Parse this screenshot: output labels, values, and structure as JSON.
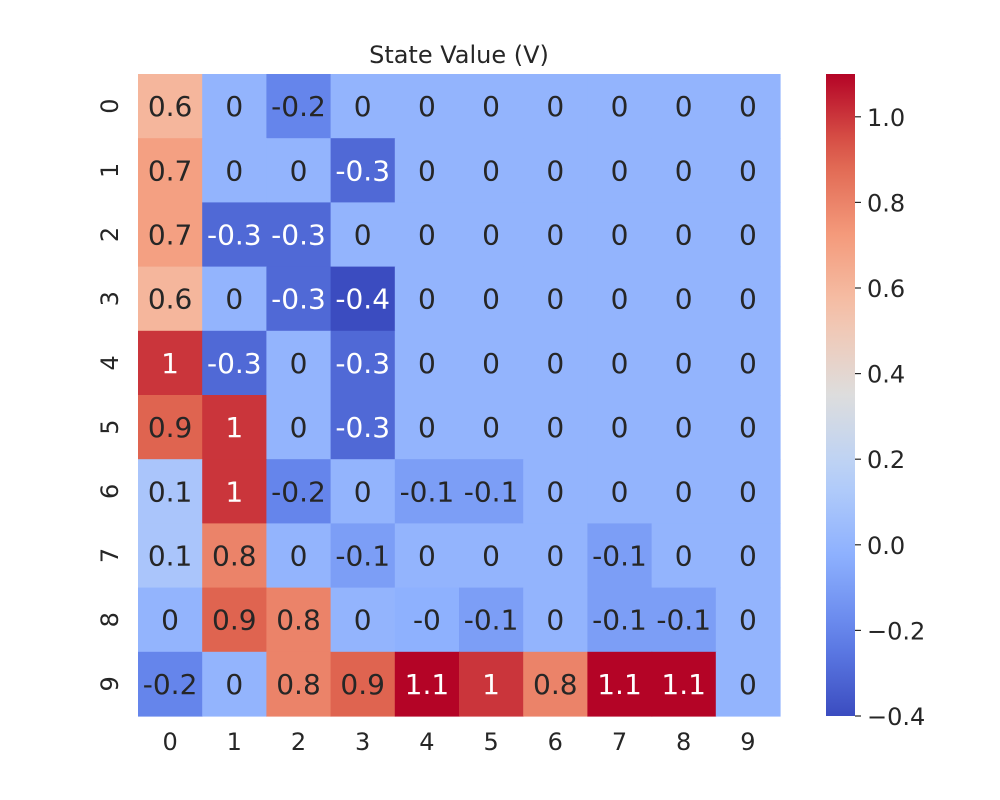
{
  "chart_data": {
    "type": "heatmap",
    "title": "State Value (V)",
    "x_categories": [
      "0",
      "1",
      "2",
      "3",
      "4",
      "5",
      "6",
      "7",
      "8",
      "9"
    ],
    "y_categories": [
      "0",
      "1",
      "2",
      "3",
      "4",
      "5",
      "6",
      "7",
      "8",
      "9"
    ],
    "values": [
      [
        0.6,
        0,
        -0.2,
        0,
        0,
        0,
        0,
        0,
        0,
        0
      ],
      [
        0.7,
        0,
        0,
        -0.3,
        0,
        0,
        0,
        0,
        0,
        0
      ],
      [
        0.7,
        -0.3,
        -0.3,
        0,
        0,
        0,
        0,
        0,
        0,
        0
      ],
      [
        0.6,
        0,
        -0.3,
        -0.4,
        0,
        0,
        0,
        0,
        0,
        0
      ],
      [
        1,
        -0.3,
        0,
        -0.3,
        0,
        0,
        0,
        0,
        0,
        0
      ],
      [
        0.9,
        1,
        0,
        -0.3,
        0,
        0,
        0,
        0,
        0,
        0
      ],
      [
        0.1,
        1,
        -0.2,
        0,
        -0.1,
        -0.1,
        0,
        0,
        0,
        0
      ],
      [
        0.1,
        0.8,
        0,
        -0.1,
        0,
        0,
        0,
        -0.1,
        0,
        0
      ],
      [
        0,
        0.9,
        0.8,
        0,
        -0.02,
        -0.1,
        0,
        -0.1,
        -0.1,
        0
      ],
      [
        -0.2,
        0,
        0.8,
        0.9,
        1.1,
        1,
        0.8,
        1.1,
        1.1,
        0
      ]
    ],
    "cell_labels": [
      [
        "0.6",
        "0",
        "-0.2",
        "0",
        "0",
        "0",
        "0",
        "0",
        "0",
        "0"
      ],
      [
        "0.7",
        "0",
        "0",
        "-0.3",
        "0",
        "0",
        "0",
        "0",
        "0",
        "0"
      ],
      [
        "0.7",
        "-0.3",
        "-0.3",
        "0",
        "0",
        "0",
        "0",
        "0",
        "0",
        "0"
      ],
      [
        "0.6",
        "0",
        "-0.3",
        "-0.4",
        "0",
        "0",
        "0",
        "0",
        "0",
        "0"
      ],
      [
        "1",
        "-0.3",
        "0",
        "-0.3",
        "0",
        "0",
        "0",
        "0",
        "0",
        "0"
      ],
      [
        "0.9",
        "1",
        "0",
        "-0.3",
        "0",
        "0",
        "0",
        "0",
        "0",
        "0"
      ],
      [
        "0.1",
        "1",
        "-0.2",
        "0",
        "-0.1",
        "-0.1",
        "0",
        "0",
        "0",
        "0"
      ],
      [
        "0.1",
        "0.8",
        "0",
        "-0.1",
        "0",
        "0",
        "0",
        "-0.1",
        "0",
        "0"
      ],
      [
        "0",
        "0.9",
        "0.8",
        "0",
        "-0",
        "-0.1",
        "0",
        "-0.1",
        "-0.1",
        "0"
      ],
      [
        "-0.2",
        "0",
        "0.8",
        "0.9",
        "1.1",
        "1",
        "0.8",
        "1.1",
        "1.1",
        "0"
      ]
    ],
    "colormap": "coolwarm",
    "vmin": -0.4,
    "vmax": 1.1,
    "colorbar_ticks": [
      -0.4,
      -0.2,
      0.0,
      0.2,
      0.4,
      0.6,
      0.8,
      1.0
    ],
    "colorbar_tick_labels": [
      "−0.4",
      "−0.2",
      "0.0",
      "0.2",
      "0.4",
      "0.6",
      "0.8",
      "1.0"
    ],
    "grid": false,
    "text_dark": "#262626",
    "text_light": "#ffffff"
  }
}
